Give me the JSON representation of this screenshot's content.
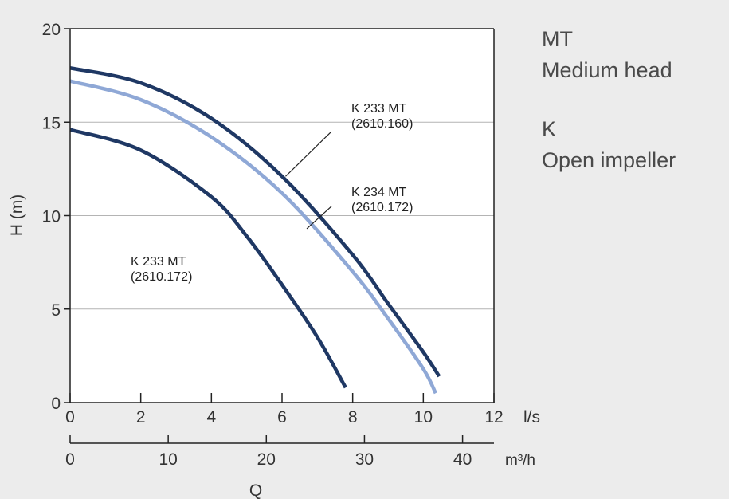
{
  "side_panel": {
    "series_code": "MT",
    "series_desc": "Medium head",
    "impeller_code": "K",
    "impeller_desc": "Open impeller"
  },
  "chart_data": {
    "type": "line",
    "ylabel": "H (m)",
    "xlabel": "Q",
    "x_unit_primary": "l/s",
    "x_unit_secondary": "m³/h",
    "xlim_ls": [
      0,
      12
    ],
    "xticks_ls": [
      0,
      2,
      4,
      6,
      8,
      10,
      12
    ],
    "xlim_m3h": [
      0,
      43.2
    ],
    "xticks_m3h": [
      0,
      10,
      20,
      30,
      40
    ],
    "ylim": [
      0,
      20
    ],
    "yticks": [
      0,
      5,
      10,
      15,
      20
    ],
    "grid": "horizontal",
    "colors": {
      "dark": "#1f3864",
      "light": "#8fa8d6",
      "grid": "#b4b4b4",
      "axis": "#222222"
    },
    "series": [
      {
        "name": "K 233 MT (2610.160)",
        "color": "#1f3864",
        "x": [
          0,
          2,
          4,
          6,
          8,
          9,
          10,
          10.45
        ],
        "y": [
          17.9,
          17.1,
          15.2,
          12.1,
          7.9,
          5.3,
          2.7,
          1.4
        ]
      },
      {
        "name": "K 234 MT (2610.172)",
        "color": "#8fa8d6",
        "x": [
          0,
          2,
          4,
          6,
          8,
          9,
          10,
          10.35
        ],
        "y": [
          17.2,
          16.2,
          14.2,
          11.2,
          7.0,
          4.5,
          1.8,
          0.5
        ]
      },
      {
        "name": "K 233 MT (2610.172)",
        "color": "#1f3864",
        "x": [
          0,
          2,
          4,
          5,
          6,
          7,
          7.8
        ],
        "y": [
          14.6,
          13.5,
          11.0,
          8.9,
          6.3,
          3.5,
          0.8
        ]
      }
    ],
    "annotations": [
      {
        "line1": "K 233 MT",
        "line2": "(2610.160)",
        "leader_from": [
          7.4,
          14.5
        ],
        "leader_to": [
          6.1,
          12.1
        ]
      },
      {
        "line1": "K 234 MT",
        "line2": "(2610.172)",
        "leader_from": [
          7.4,
          10.5
        ],
        "leader_to": [
          6.7,
          9.3
        ]
      },
      {
        "line1": "K 233 MT",
        "line2": "(2610.172)"
      }
    ]
  }
}
